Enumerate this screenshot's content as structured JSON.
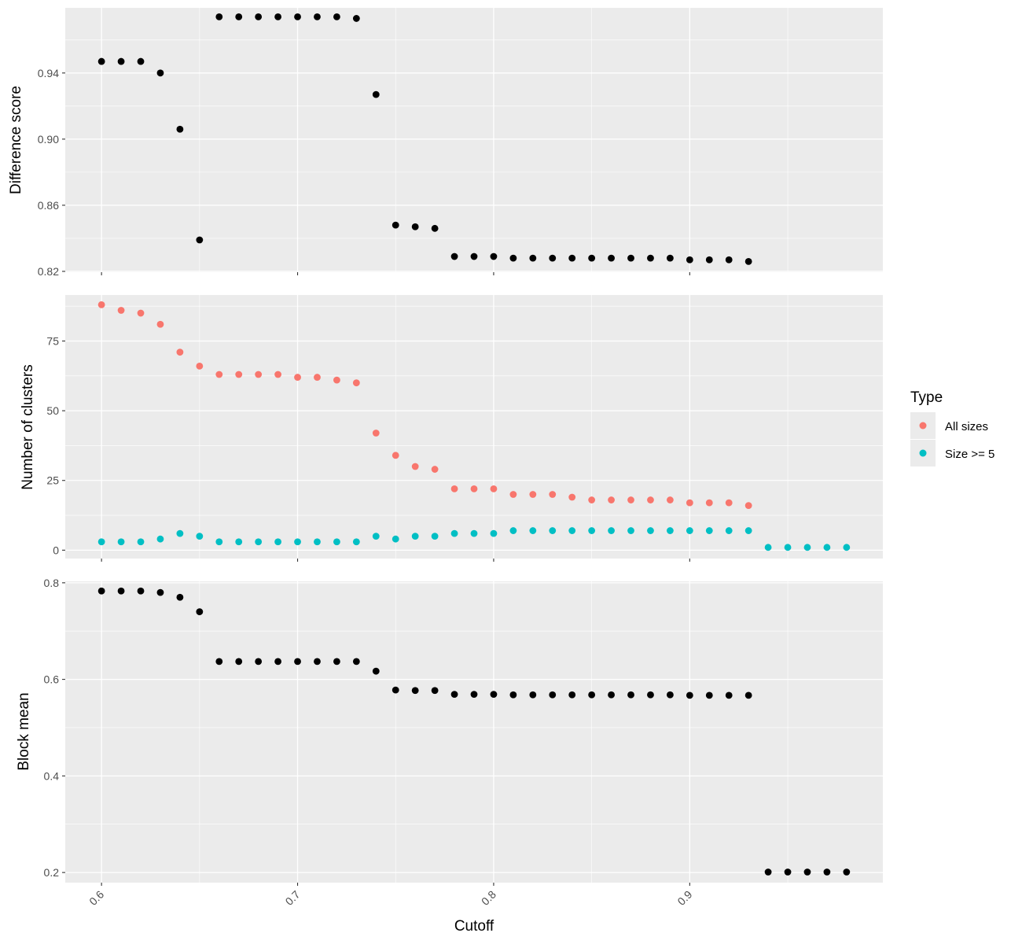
{
  "colors": {
    "panel_bg": "#EBEBEB",
    "grid_major": "#FFFFFF",
    "tick": "#333333",
    "point_default": "#000000",
    "all_sizes": "#F8766D",
    "size_ge5": "#00BFC4"
  },
  "xaxis": {
    "label": "Cutoff",
    "lim": [
      0.5815,
      0.9985
    ],
    "ticks": [
      0.6,
      0.7,
      0.8,
      0.9
    ],
    "tick_labels": [
      "0.6",
      "0.7",
      "0.8",
      "0.9"
    ],
    "tick_label_angle": -45
  },
  "legend": {
    "title": "Type",
    "items": [
      {
        "label": "All sizes",
        "color": "#F8766D"
      },
      {
        "label": "Size >= 5",
        "color": "#00BFC4"
      }
    ]
  },
  "chart_data": [
    {
      "type": "scatter",
      "ylabel": "Difference score",
      "ylim": [
        0.8195,
        0.9794
      ],
      "yticks": [
        0.82,
        0.86,
        0.9,
        0.94
      ],
      "ytick_labels": [
        "0.82",
        "0.86",
        "0.90",
        "0.94"
      ],
      "grid": true,
      "series": [
        {
          "color": "#000000",
          "x": [
            0.6,
            0.61,
            0.62,
            0.63,
            0.64,
            0.65,
            0.66,
            0.67,
            0.68,
            0.69,
            0.7,
            0.71,
            0.72,
            0.73,
            0.74,
            0.75,
            0.76,
            0.77,
            0.78,
            0.79,
            0.8,
            0.81,
            0.82,
            0.83,
            0.84,
            0.85,
            0.86,
            0.87,
            0.88,
            0.89,
            0.9,
            0.91,
            0.92,
            0.93
          ],
          "y": [
            0.947,
            0.947,
            0.947,
            0.94,
            0.906,
            0.839,
            0.974,
            0.974,
            0.974,
            0.974,
            0.974,
            0.974,
            0.974,
            0.973,
            0.927,
            0.848,
            0.847,
            0.846,
            0.829,
            0.829,
            0.829,
            0.828,
            0.828,
            0.828,
            0.828,
            0.828,
            0.828,
            0.828,
            0.828,
            0.828,
            0.827,
            0.827,
            0.827,
            0.826
          ]
        }
      ]
    },
    {
      "type": "scatter",
      "ylabel": "Number of clusters",
      "ylim": [
        -3,
        91.5
      ],
      "yticks": [
        0,
        25,
        50,
        75
      ],
      "ytick_labels": [
        "0",
        "25",
        "50",
        "75"
      ],
      "grid": true,
      "series": [
        {
          "name": "All sizes",
          "color": "#F8766D",
          "x": [
            0.6,
            0.61,
            0.62,
            0.63,
            0.64,
            0.65,
            0.66,
            0.67,
            0.68,
            0.69,
            0.7,
            0.71,
            0.72,
            0.73,
            0.74,
            0.75,
            0.76,
            0.77,
            0.78,
            0.79,
            0.8,
            0.81,
            0.82,
            0.83,
            0.84,
            0.85,
            0.86,
            0.87,
            0.88,
            0.89,
            0.9,
            0.91,
            0.92,
            0.93
          ],
          "y": [
            88,
            86,
            85,
            81,
            71,
            66,
            63,
            63,
            63,
            63,
            62,
            62,
            61,
            60,
            42,
            34,
            30,
            29,
            22,
            22,
            22,
            20,
            20,
            20,
            19,
            18,
            18,
            18,
            18,
            18,
            17,
            17,
            17,
            16
          ]
        },
        {
          "name": "Size >= 5",
          "color": "#00BFC4",
          "x": [
            0.6,
            0.61,
            0.62,
            0.63,
            0.64,
            0.65,
            0.66,
            0.67,
            0.68,
            0.69,
            0.7,
            0.71,
            0.72,
            0.73,
            0.74,
            0.75,
            0.76,
            0.77,
            0.78,
            0.79,
            0.8,
            0.81,
            0.82,
            0.83,
            0.84,
            0.85,
            0.86,
            0.87,
            0.88,
            0.89,
            0.9,
            0.91,
            0.92,
            0.93,
            0.94,
            0.95,
            0.96,
            0.97,
            0.98
          ],
          "y": [
            3,
            3,
            3,
            4,
            6,
            5,
            3,
            3,
            3,
            3,
            3,
            3,
            3,
            3,
            5,
            4,
            5,
            5,
            6,
            6,
            6,
            7,
            7,
            7,
            7,
            7,
            7,
            7,
            7,
            7,
            7,
            7,
            7,
            7,
            1,
            1,
            1,
            1,
            1
          ]
        }
      ]
    },
    {
      "type": "scatter",
      "ylabel": "Block mean",
      "ylim": [
        0.179,
        0.803
      ],
      "yticks": [
        0.2,
        0.4,
        0.6,
        0.8
      ],
      "ytick_labels": [
        "0.2",
        "0.4",
        "0.6",
        "0.8"
      ],
      "grid": true,
      "series": [
        {
          "color": "#000000",
          "x": [
            0.6,
            0.61,
            0.62,
            0.63,
            0.64,
            0.65,
            0.66,
            0.67,
            0.68,
            0.69,
            0.7,
            0.71,
            0.72,
            0.73,
            0.74,
            0.75,
            0.76,
            0.77,
            0.78,
            0.79,
            0.8,
            0.81,
            0.82,
            0.83,
            0.84,
            0.85,
            0.86,
            0.87,
            0.88,
            0.89,
            0.9,
            0.91,
            0.92,
            0.93,
            0.94,
            0.95,
            0.96,
            0.97,
            0.98
          ],
          "y": [
            0.783,
            0.783,
            0.783,
            0.78,
            0.77,
            0.74,
            0.637,
            0.637,
            0.637,
            0.637,
            0.637,
            0.637,
            0.637,
            0.637,
            0.617,
            0.578,
            0.577,
            0.577,
            0.569,
            0.569,
            0.569,
            0.568,
            0.568,
            0.568,
            0.568,
            0.568,
            0.568,
            0.568,
            0.568,
            0.568,
            0.567,
            0.567,
            0.567,
            0.567,
            0.201,
            0.201,
            0.201,
            0.201,
            0.201
          ]
        }
      ]
    }
  ]
}
